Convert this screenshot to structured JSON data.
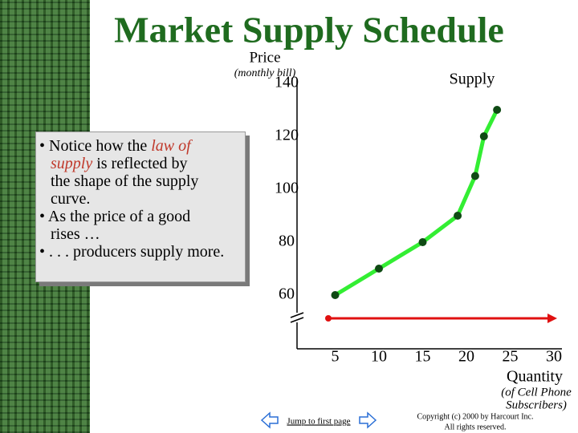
{
  "chart_data": {
    "type": "line",
    "title": "Market Supply Schedule",
    "y_label": "Price",
    "y_label_sub": "(monthly bill)",
    "annotation": "Supply",
    "x_label": "Quantity",
    "x_label_sub": [
      "(of Cell Phone",
      "Subscribers)"
    ],
    "x": [
      5,
      10,
      15,
      19,
      21,
      22,
      23.5
    ],
    "series": [
      {
        "name": "Supply",
        "color": "#33ee33",
        "values": [
          60,
          70,
          80,
          90,
          105,
          120,
          130
        ]
      }
    ],
    "xlim": [
      0,
      30
    ],
    "xticks": [
      5,
      10,
      15,
      20,
      25,
      30
    ],
    "ylim": [
      60,
      140
    ],
    "yticks": [
      60,
      80,
      100,
      120,
      140
    ],
    "point_color": "#0f4a14"
  },
  "notes": {
    "lines": [
      [
        "• Notice how the ",
        "law of"
      ],
      [
        "supply",
        " is reflected by"
      ],
      [
        "the shape of the supply"
      ],
      [
        "curve."
      ],
      [
        "• As the price of a good"
      ],
      [
        "rises …"
      ],
      [
        "• . . . producers supply more."
      ]
    ]
  },
  "footer": {
    "link": "Jump to first page",
    "copyright": [
      "Copyright (c) 2000 by Harcourt Inc.",
      "All rights reserved."
    ]
  }
}
